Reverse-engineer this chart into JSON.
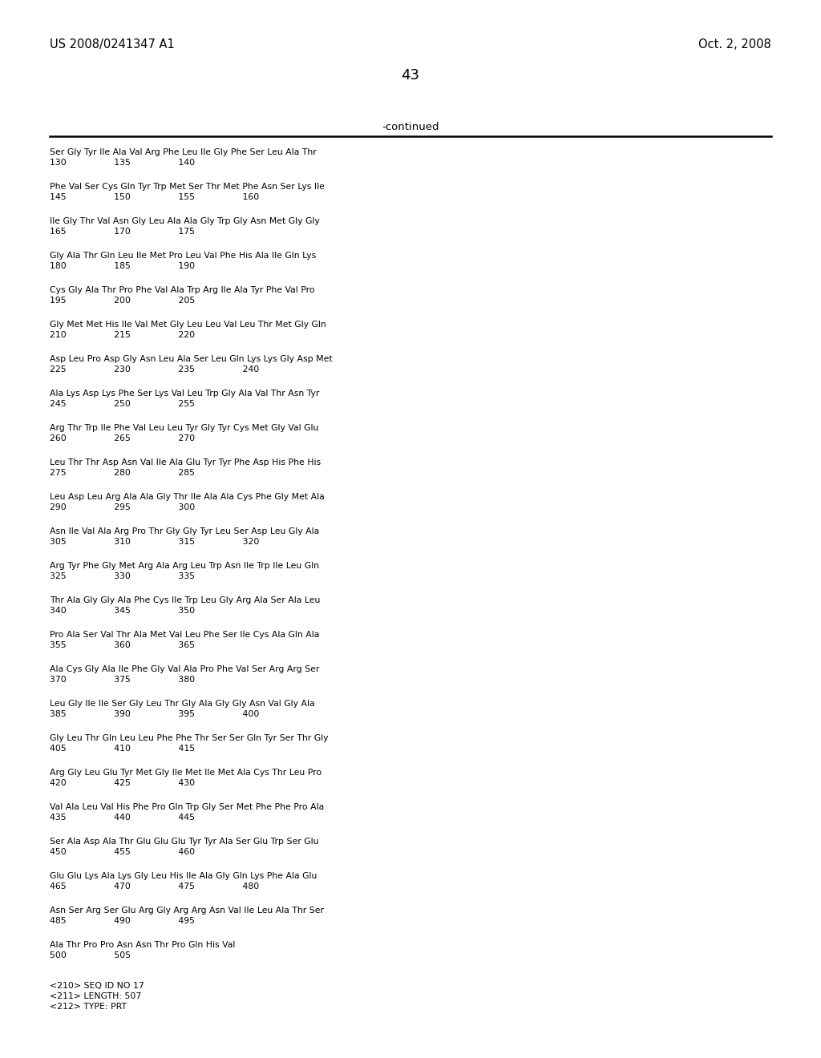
{
  "header_left": "US 2008/0241347 A1",
  "header_right": "Oct. 2, 2008",
  "page_number": "43",
  "continued_label": "-continued",
  "background_color": "#ffffff",
  "text_color": "#000000",
  "sequence_blocks": [
    {
      "seq": "Ser Gly Tyr Ile Ala Val Arg Phe Leu Ile Gly Phe Ser Leu Ala Thr",
      "nums": "130                 135                 140"
    },
    {
      "seq": "Phe Val Ser Cys Gln Tyr Trp Met Ser Thr Met Phe Asn Ser Lys Ile",
      "nums": "145                 150                 155                 160"
    },
    {
      "seq": "Ile Gly Thr Val Asn Gly Leu Ala Ala Gly Trp Gly Asn Met Gly Gly",
      "nums": "165                 170                 175"
    },
    {
      "seq": "Gly Ala Thr Gln Leu Ile Met Pro Leu Val Phe His Ala Ile Gln Lys",
      "nums": "180                 185                 190"
    },
    {
      "seq": "Cys Gly Ala Thr Pro Phe Val Ala Trp Arg Ile Ala Tyr Phe Val Pro",
      "nums": "195                 200                 205"
    },
    {
      "seq": "Gly Met Met His Ile Val Met Gly Leu Leu Val Leu Thr Met Gly Gln",
      "nums": "210                 215                 220"
    },
    {
      "seq": "Asp Leu Pro Asp Gly Asn Leu Ala Ser Leu Gln Lys Lys Gly Asp Met",
      "nums": "225                 230                 235                 240"
    },
    {
      "seq": "Ala Lys Asp Lys Phe Ser Lys Val Leu Trp Gly Ala Val Thr Asn Tyr",
      "nums": "245                 250                 255"
    },
    {
      "seq": "Arg Thr Trp Ile Phe Val Leu Leu Tyr Gly Tyr Cys Met Gly Val Glu",
      "nums": "260                 265                 270"
    },
    {
      "seq": "Leu Thr Thr Asp Asn Val Ile Ala Glu Tyr Tyr Phe Asp His Phe His",
      "nums": "275                 280                 285"
    },
    {
      "seq": "Leu Asp Leu Arg Ala Ala Gly Thr Ile Ala Ala Cys Phe Gly Met Ala",
      "nums": "290                 295                 300"
    },
    {
      "seq": "Asn Ile Val Ala Arg Pro Thr Gly Gly Tyr Leu Ser Asp Leu Gly Ala",
      "nums": "305                 310                 315                 320"
    },
    {
      "seq": "Arg Tyr Phe Gly Met Arg Ala Arg Leu Trp Asn Ile Trp Ile Leu Gln",
      "nums": "325                 330                 335"
    },
    {
      "seq": "Thr Ala Gly Gly Ala Phe Cys Ile Trp Leu Gly Arg Ala Ser Ala Leu",
      "nums": "340                 345                 350"
    },
    {
      "seq": "Pro Ala Ser Val Thr Ala Met Val Leu Phe Ser Ile Cys Ala Gln Ala",
      "nums": "355                 360                 365"
    },
    {
      "seq": "Ala Cys Gly Ala Ile Phe Gly Val Ala Pro Phe Val Ser Arg Arg Ser",
      "nums": "370                 375                 380"
    },
    {
      "seq": "Leu Gly Ile Ile Ser Gly Leu Thr Gly Ala Gly Gly Asn Val Gly Ala",
      "nums": "385                 390                 395                 400"
    },
    {
      "seq": "Gly Leu Thr Gln Leu Leu Phe Phe Thr Ser Ser Gln Tyr Ser Thr Gly",
      "nums": "405                 410                 415"
    },
    {
      "seq": "Arg Gly Leu Glu Tyr Met Gly Ile Met Ile Met Ala Cys Thr Leu Pro",
      "nums": "420                 425                 430"
    },
    {
      "seq": "Val Ala Leu Val His Phe Pro Gln Trp Gly Ser Met Phe Phe Pro Ala",
      "nums": "435                 440                 445"
    },
    {
      "seq": "Ser Ala Asp Ala Thr Glu Glu Glu Tyr Tyr Ala Ser Glu Trp Ser Glu",
      "nums": "450                 455                 460"
    },
    {
      "seq": "Glu Glu Lys Ala Lys Gly Leu His Ile Ala Gly Gln Lys Phe Ala Glu",
      "nums": "465                 470                 475                 480"
    },
    {
      "seq": "Asn Ser Arg Ser Glu Arg Gly Arg Arg Asn Val Ile Leu Ala Thr Ser",
      "nums": "485                 490                 495"
    },
    {
      "seq": "Ala Thr Pro Pro Asn Asn Thr Pro Gln His Val",
      "nums": "500                 505"
    }
  ],
  "footer_lines": [
    "<210> SEQ ID NO 17",
    "<211> LENGTH: 507",
    "<212> TYPE: PRT"
  ]
}
